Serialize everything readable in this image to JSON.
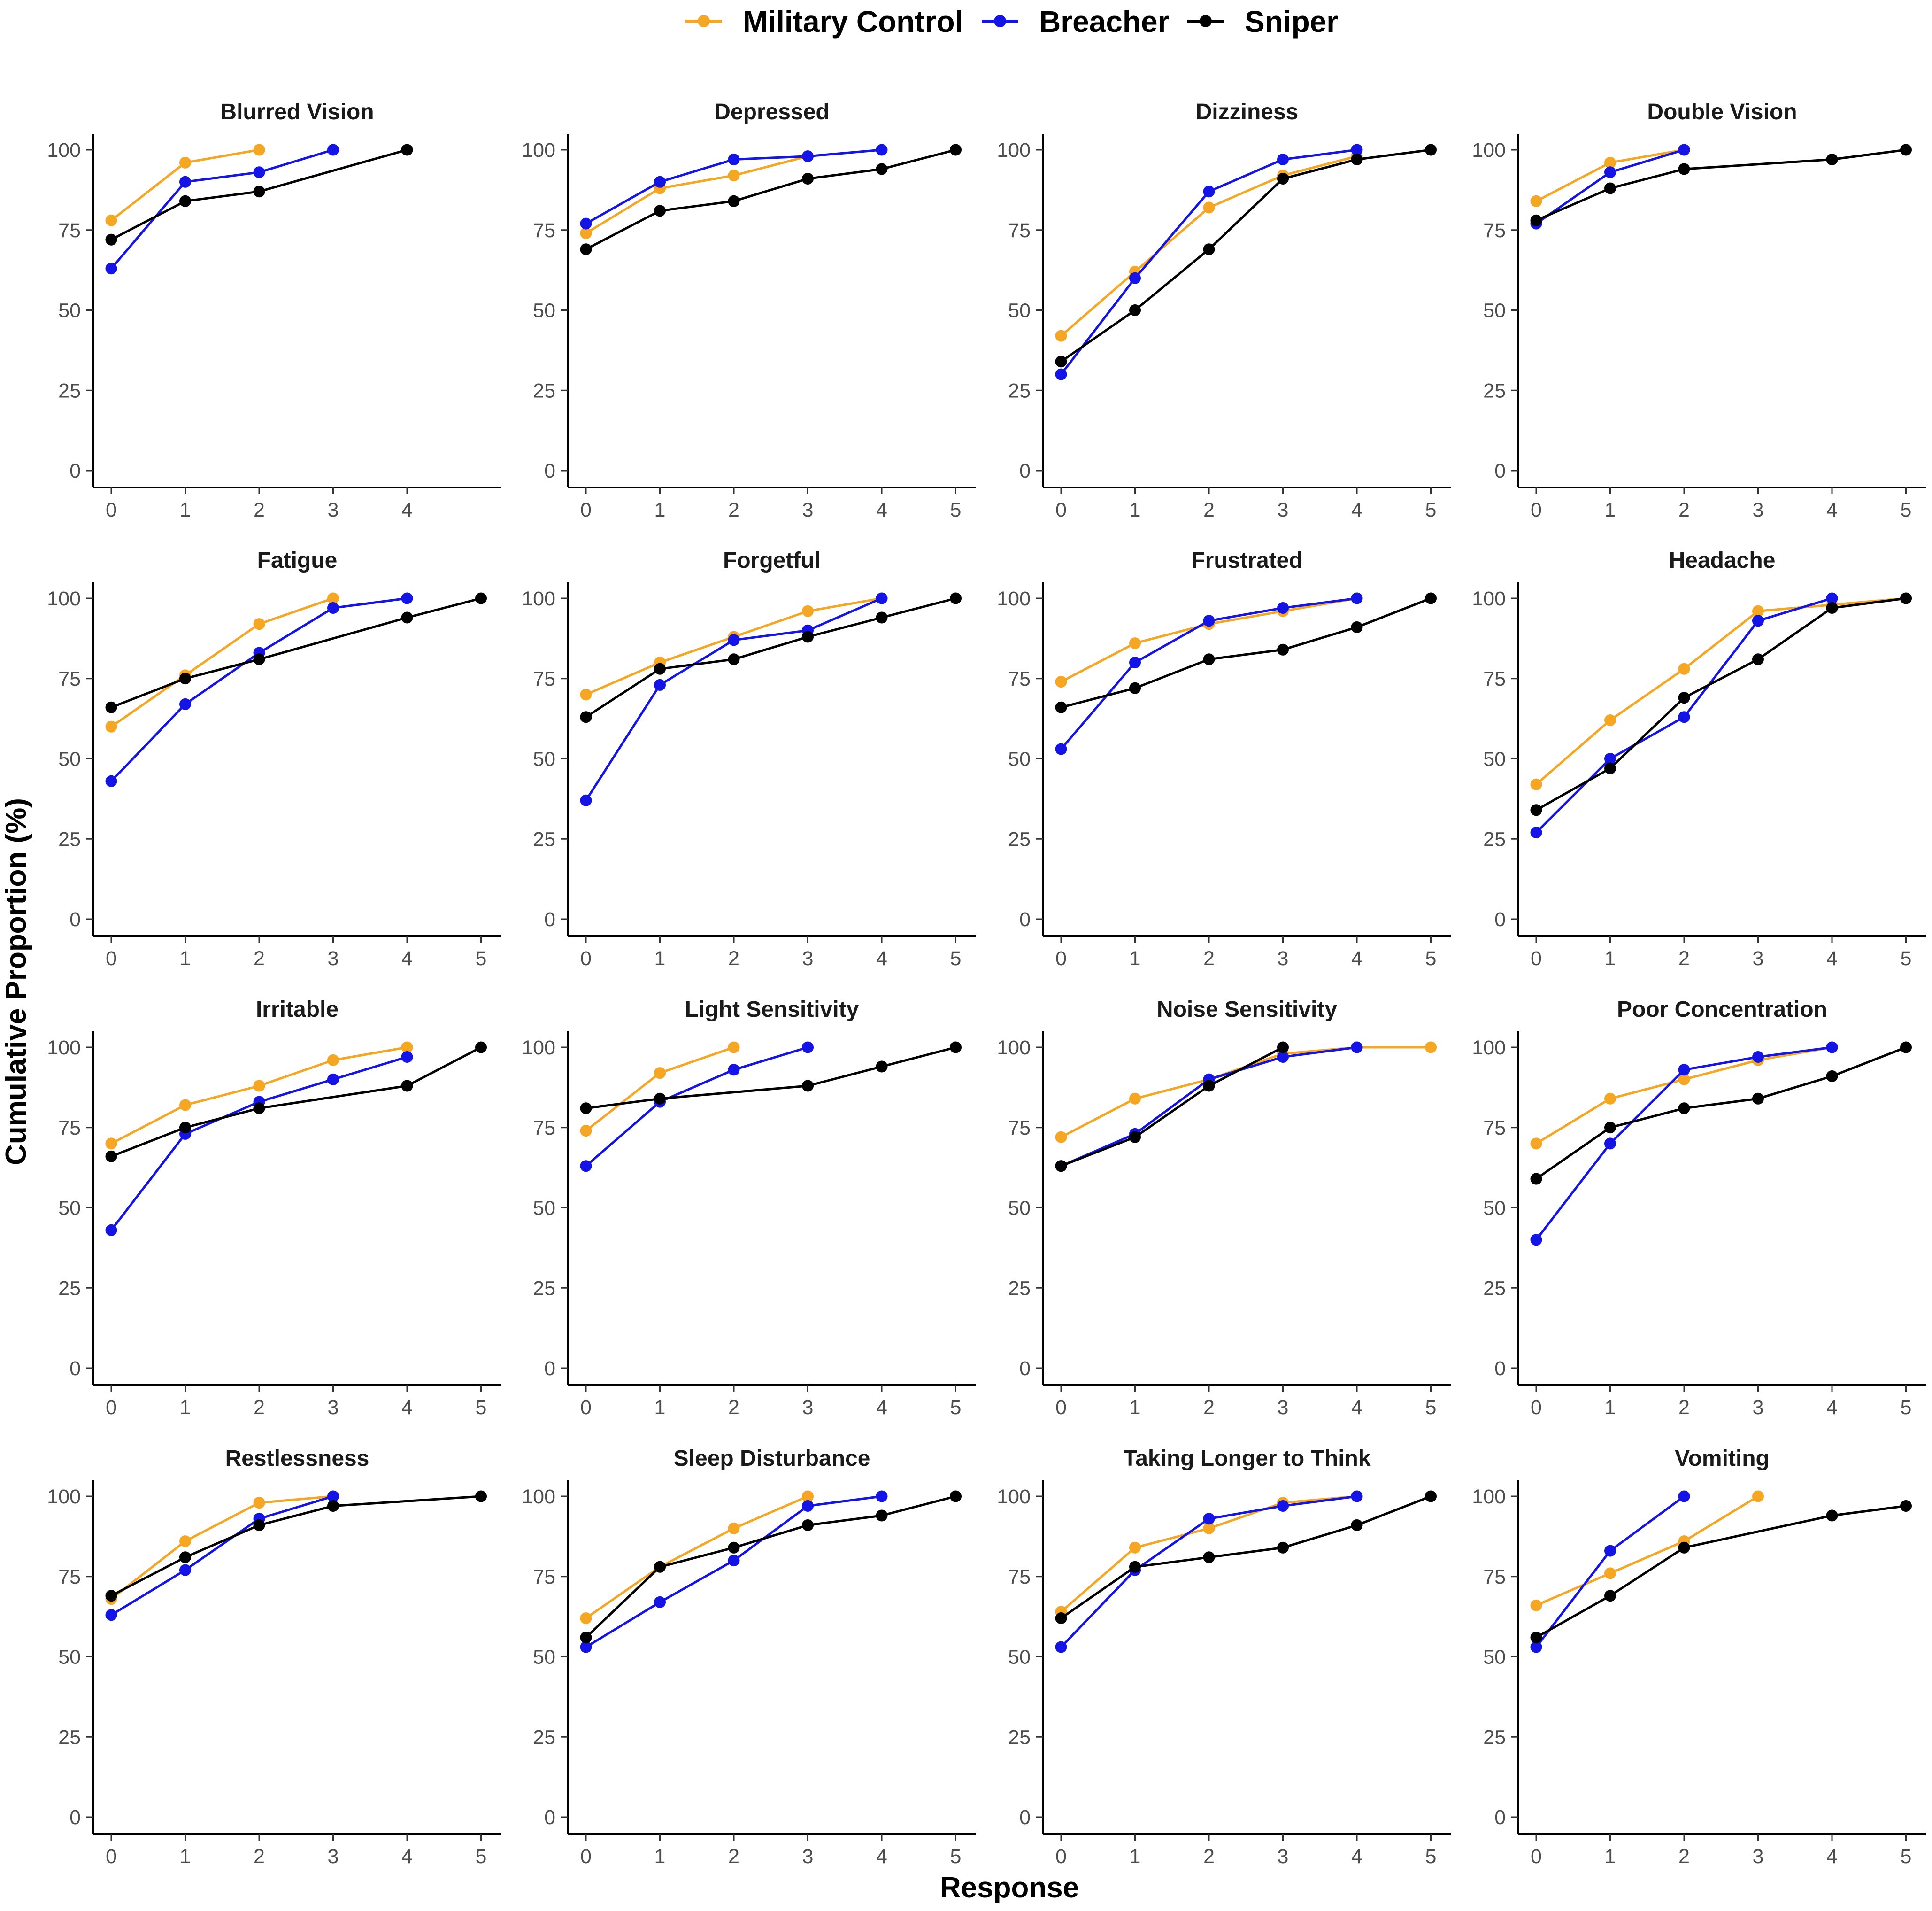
{
  "chart_data": {
    "type": "line",
    "xlabel": "Response",
    "ylabel": "Cumulative Proportion (%)",
    "ylim": [
      0,
      100
    ],
    "yticks": [
      0,
      25,
      50,
      75,
      100
    ],
    "legend": {
      "placement": "top-center",
      "entries": [
        {
          "name": "Military Control",
          "color": "#F5A623"
        },
        {
          "name": "Breacher",
          "color": "#1414E6"
        },
        {
          "name": "Sniper",
          "color": "#000000"
        }
      ]
    },
    "panels": [
      {
        "title": "Blurred Vision",
        "xticks": [
          0,
          1,
          2,
          3,
          4
        ],
        "series": [
          {
            "name": "Military Control",
            "x": [
              0,
              1,
              2
            ],
            "values": [
              78,
              96,
              100
            ]
          },
          {
            "name": "Breacher",
            "x": [
              0,
              1,
              2,
              3
            ],
            "values": [
              63,
              90,
              93,
              100
            ]
          },
          {
            "name": "Sniper",
            "x": [
              0,
              1,
              2,
              4
            ],
            "values": [
              72,
              84,
              87,
              100
            ]
          }
        ]
      },
      {
        "title": "Depressed",
        "xticks": [
          0,
          1,
          2,
          3,
          4,
          5
        ],
        "series": [
          {
            "name": "Military Control",
            "x": [
              0,
              1,
              2,
              3
            ],
            "values": [
              74,
              88,
              92,
              98
            ]
          },
          {
            "name": "Breacher",
            "x": [
              0,
              1,
              2,
              3,
              4
            ],
            "values": [
              77,
              90,
              97,
              98,
              100
            ]
          },
          {
            "name": "Sniper",
            "x": [
              0,
              1,
              2,
              3,
              4,
              5
            ],
            "values": [
              69,
              81,
              84,
              91,
              94,
              100
            ]
          }
        ]
      },
      {
        "title": "Dizziness",
        "xticks": [
          0,
          1,
          2,
          3,
          4,
          5
        ],
        "series": [
          {
            "name": "Military Control",
            "x": [
              0,
              1,
              2,
              3,
              4
            ],
            "values": [
              42,
              62,
              82,
              92,
              98
            ]
          },
          {
            "name": "Breacher",
            "x": [
              0,
              1,
              2,
              3,
              4
            ],
            "values": [
              30,
              60,
              87,
              97,
              100
            ]
          },
          {
            "name": "Sniper",
            "x": [
              0,
              1,
              2,
              3,
              4,
              5
            ],
            "values": [
              34,
              50,
              69,
              91,
              97,
              100
            ]
          }
        ]
      },
      {
        "title": "Double Vision",
        "xticks": [
          0,
          1,
          2,
          3,
          4,
          5
        ],
        "series": [
          {
            "name": "Military Control",
            "x": [
              0,
              1,
              2
            ],
            "values": [
              84,
              96,
              100
            ]
          },
          {
            "name": "Breacher",
            "x": [
              0,
              1,
              2
            ],
            "values": [
              77,
              93,
              100
            ]
          },
          {
            "name": "Sniper",
            "x": [
              0,
              1,
              2,
              4,
              5
            ],
            "values": [
              78,
              88,
              94,
              97,
              100
            ]
          }
        ]
      },
      {
        "title": "Fatigue",
        "xticks": [
          0,
          1,
          2,
          3,
          4,
          5
        ],
        "series": [
          {
            "name": "Military Control",
            "x": [
              0,
              1,
              2,
              3
            ],
            "values": [
              60,
              76,
              92,
              100
            ]
          },
          {
            "name": "Breacher",
            "x": [
              0,
              1,
              2,
              3,
              4
            ],
            "values": [
              43,
              67,
              83,
              97,
              100
            ]
          },
          {
            "name": "Sniper",
            "x": [
              0,
              1,
              2,
              4,
              5
            ],
            "values": [
              66,
              75,
              81,
              94,
              100
            ]
          }
        ]
      },
      {
        "title": "Forgetful",
        "xticks": [
          0,
          1,
          2,
          3,
          4,
          5
        ],
        "series": [
          {
            "name": "Military Control",
            "x": [
              0,
              1,
              2,
              3,
              4
            ],
            "values": [
              70,
              80,
              88,
              96,
              100
            ]
          },
          {
            "name": "Breacher",
            "x": [
              0,
              1,
              2,
              3,
              4
            ],
            "values": [
              37,
              73,
              87,
              90,
              100
            ]
          },
          {
            "name": "Sniper",
            "x": [
              0,
              1,
              2,
              3,
              4,
              5
            ],
            "values": [
              63,
              78,
              81,
              88,
              94,
              100
            ]
          }
        ]
      },
      {
        "title": "Frustrated",
        "xticks": [
          0,
          1,
          2,
          3,
          4,
          5
        ],
        "series": [
          {
            "name": "Military Control",
            "x": [
              0,
              1,
              2,
              3,
              4
            ],
            "values": [
              74,
              86,
              92,
              96,
              100
            ]
          },
          {
            "name": "Breacher",
            "x": [
              0,
              1,
              2,
              3,
              4
            ],
            "values": [
              53,
              80,
              93,
              97,
              100
            ]
          },
          {
            "name": "Sniper",
            "x": [
              0,
              1,
              2,
              3,
              4,
              5
            ],
            "values": [
              66,
              72,
              81,
              84,
              91,
              100
            ]
          }
        ]
      },
      {
        "title": "Headache",
        "xticks": [
          0,
          1,
          2,
          3,
          4,
          5
        ],
        "series": [
          {
            "name": "Military Control",
            "x": [
              0,
              1,
              2,
              3,
              4,
              5
            ],
            "values": [
              42,
              62,
              78,
              96,
              98,
              100
            ]
          },
          {
            "name": "Breacher",
            "x": [
              0,
              1,
              2,
              3,
              4
            ],
            "values": [
              27,
              50,
              63,
              93,
              100
            ]
          },
          {
            "name": "Sniper",
            "x": [
              0,
              1,
              2,
              3,
              4,
              5
            ],
            "values": [
              34,
              47,
              69,
              81,
              97,
              100
            ]
          }
        ]
      },
      {
        "title": "Irritable",
        "xticks": [
          0,
          1,
          2,
          3,
          4,
          5
        ],
        "series": [
          {
            "name": "Military Control",
            "x": [
              0,
              1,
              2,
              3,
              4
            ],
            "values": [
              70,
              82,
              88,
              96,
              100
            ]
          },
          {
            "name": "Breacher",
            "x": [
              0,
              1,
              2,
              3,
              4
            ],
            "values": [
              43,
              73,
              83,
              90,
              97
            ]
          },
          {
            "name": "Sniper",
            "x": [
              0,
              1,
              2,
              4,
              5
            ],
            "values": [
              66,
              75,
              81,
              88,
              100
            ]
          }
        ]
      },
      {
        "title": "Light Sensitivity",
        "xticks": [
          0,
          1,
          2,
          3,
          4,
          5
        ],
        "series": [
          {
            "name": "Military Control",
            "x": [
              0,
              1,
              2
            ],
            "values": [
              74,
              92,
              100
            ]
          },
          {
            "name": "Breacher",
            "x": [
              0,
              1,
              2,
              3
            ],
            "values": [
              63,
              83,
              93,
              100
            ]
          },
          {
            "name": "Sniper",
            "x": [
              0,
              1,
              3,
              4,
              5
            ],
            "values": [
              81,
              84,
              88,
              94,
              100
            ]
          }
        ]
      },
      {
        "title": "Noise Sensitivity",
        "xticks": [
          0,
          1,
          2,
          3,
          4,
          5
        ],
        "series": [
          {
            "name": "Military Control",
            "x": [
              0,
              1,
              2,
              3,
              4,
              5
            ],
            "values": [
              72,
              84,
              90,
              98,
              100,
              100
            ]
          },
          {
            "name": "Breacher",
            "x": [
              0,
              1,
              2,
              3,
              4
            ],
            "values": [
              63,
              73,
              90,
              97,
              100
            ]
          },
          {
            "name": "Sniper",
            "x": [
              0,
              1,
              2,
              3
            ],
            "values": [
              63,
              72,
              88,
              100
            ]
          }
        ]
      },
      {
        "title": "Poor Concentration",
        "xticks": [
          0,
          1,
          2,
          3,
          4,
          5
        ],
        "series": [
          {
            "name": "Military Control",
            "x": [
              0,
              1,
              2,
              3,
              4
            ],
            "values": [
              70,
              84,
              90,
              96,
              100
            ]
          },
          {
            "name": "Breacher",
            "x": [
              0,
              1,
              2,
              3,
              4
            ],
            "values": [
              40,
              70,
              93,
              97,
              100
            ]
          },
          {
            "name": "Sniper",
            "x": [
              0,
              1,
              2,
              3,
              4,
              5
            ],
            "values": [
              59,
              75,
              81,
              84,
              91,
              100
            ]
          }
        ]
      },
      {
        "title": "Restlessness",
        "xticks": [
          0,
          1,
          2,
          3,
          4,
          5
        ],
        "series": [
          {
            "name": "Military Control",
            "x": [
              0,
              1,
              2,
              3
            ],
            "values": [
              68,
              86,
              98,
              100
            ]
          },
          {
            "name": "Breacher",
            "x": [
              0,
              1,
              2,
              3
            ],
            "values": [
              63,
              77,
              93,
              100
            ]
          },
          {
            "name": "Sniper",
            "x": [
              0,
              1,
              2,
              3,
              5
            ],
            "values": [
              69,
              81,
              91,
              97,
              100
            ]
          }
        ]
      },
      {
        "title": "Sleep Disturbance",
        "xticks": [
          0,
          1,
          2,
          3,
          4,
          5
        ],
        "series": [
          {
            "name": "Military Control",
            "x": [
              0,
              1,
              2,
              3
            ],
            "values": [
              62,
              78,
              90,
              100
            ]
          },
          {
            "name": "Breacher",
            "x": [
              0,
              1,
              2,
              3,
              4
            ],
            "values": [
              53,
              67,
              80,
              97,
              100
            ]
          },
          {
            "name": "Sniper",
            "x": [
              0,
              1,
              2,
              3,
              4,
              5
            ],
            "values": [
              56,
              78,
              84,
              91,
              94,
              100
            ]
          }
        ]
      },
      {
        "title": "Taking Longer to Think",
        "xticks": [
          0,
          1,
          2,
          3,
          4,
          5
        ],
        "series": [
          {
            "name": "Military Control",
            "x": [
              0,
              1,
              2,
              3,
              4
            ],
            "values": [
              64,
              84,
              90,
              98,
              100
            ]
          },
          {
            "name": "Breacher",
            "x": [
              0,
              1,
              2,
              3,
              4
            ],
            "values": [
              53,
              77,
              93,
              97,
              100
            ]
          },
          {
            "name": "Sniper",
            "x": [
              0,
              1,
              2,
              3,
              4,
              5
            ],
            "values": [
              62,
              78,
              81,
              84,
              91,
              100
            ]
          }
        ]
      },
      {
        "title": "Vomiting",
        "xticks": [
          0,
          1,
          2,
          3,
          4,
          5
        ],
        "series": [
          {
            "name": "Military Control",
            "x": [
              0,
              1,
              2,
              3
            ],
            "values": [
              66,
              76,
              86,
              100
            ]
          },
          {
            "name": "Breacher",
            "x": [
              0,
              1,
              2
            ],
            "values": [
              53,
              83,
              100
            ]
          },
          {
            "name": "Sniper",
            "x": [
              0,
              1,
              2,
              4,
              5
            ],
            "values": [
              56,
              69,
              84,
              94,
              97
            ]
          }
        ]
      }
    ]
  }
}
